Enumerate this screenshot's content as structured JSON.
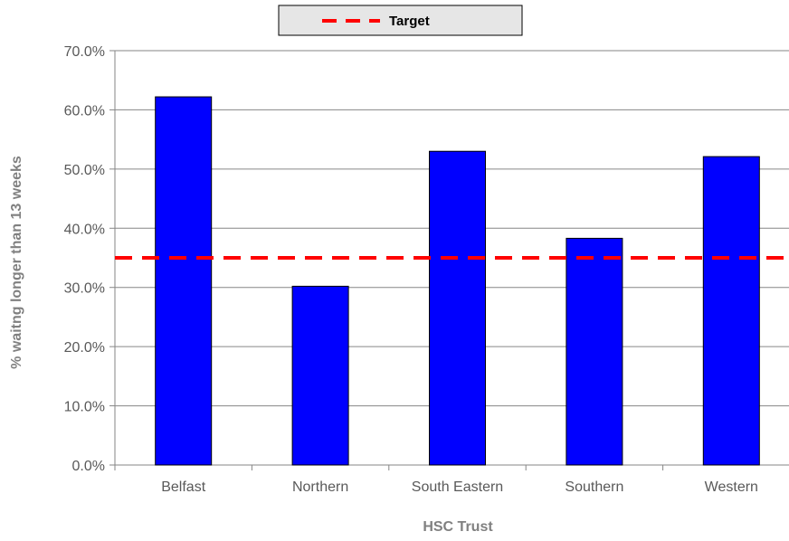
{
  "chart_data": {
    "type": "bar",
    "categories": [
      "Belfast",
      "Northern",
      "South Eastern",
      "Southern",
      "Western"
    ],
    "series": [
      {
        "values": [
          62.2,
          30.2,
          53.0,
          38.3,
          52.1
        ]
      }
    ],
    "target": {
      "name": "Target",
      "value": 35.0
    },
    "xlabel": "HSC Trust",
    "ylabel": "% waitng longer than 13 weeks",
    "ylim": [
      0,
      70
    ],
    "yticks": [
      "0.0%",
      "10.0%",
      "20.0%",
      "30.0%",
      "40.0%",
      "50.0%",
      "60.0%",
      "70.0%"
    ],
    "grid": true,
    "legend_position": "top-center",
    "colors": {
      "bar": "#0000ff",
      "bar_outline": "#000000",
      "target_line": "#ff0000",
      "gridline": "#868686",
      "legend_background": "#e6e6e6"
    }
  }
}
